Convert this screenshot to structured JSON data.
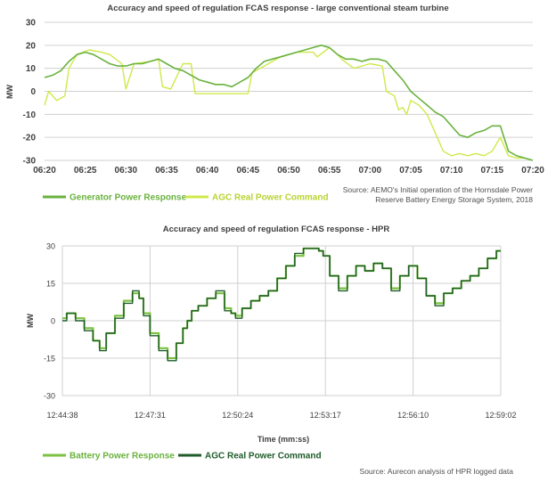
{
  "colors": {
    "gen_response": "#6ab23e",
    "agc_command_1": "#d0e84a",
    "battery_response": "#7cc242",
    "agc_command_2": "#1f5c2a",
    "grid": "#d0d0d0",
    "text": "#404040"
  },
  "chart_data": [
    {
      "type": "line",
      "title": "Accuracy and speed of regulation FCAS response - large conventional steam turbine",
      "ylabel": "MW",
      "xlabel": "",
      "ylim": [
        -30,
        30
      ],
      "yticks": [
        30,
        20,
        10,
        0,
        -10,
        -20,
        -30
      ],
      "xlim": [
        0,
        60
      ],
      "xticks": [
        {
          "t": 0,
          "label": "06:20"
        },
        {
          "t": 5,
          "label": "06:25"
        },
        {
          "t": 10,
          "label": "06:30"
        },
        {
          "t": 15,
          "label": "06:35"
        },
        {
          "t": 20,
          "label": "06:40"
        },
        {
          "t": 25,
          "label": "06:45"
        },
        {
          "t": 30,
          "label": "06:50"
        },
        {
          "t": 35,
          "label": "06:55"
        },
        {
          "t": 40,
          "label": "07:00"
        },
        {
          "t": 45,
          "label": "07:05"
        },
        {
          "t": 50,
          "label": "07:10"
        },
        {
          "t": 55,
          "label": "07:15"
        },
        {
          "t": 60,
          "label": "07:20"
        }
      ],
      "series": [
        {
          "name": "Generator Power Response",
          "x": [
            0,
            1,
            2,
            3,
            4,
            5,
            6,
            7,
            8,
            9,
            10,
            11,
            12,
            13,
            14,
            15,
            16,
            17,
            18,
            19,
            20,
            21,
            22,
            23,
            24,
            25,
            26,
            27,
            28,
            29,
            30,
            31,
            32,
            33,
            34,
            35,
            36,
            37,
            38,
            39,
            40,
            41,
            42,
            43,
            44,
            45,
            46,
            47,
            48,
            49,
            50,
            51,
            52,
            53,
            54,
            55,
            56,
            57,
            58,
            59,
            60
          ],
          "values": [
            6,
            7,
            9,
            13,
            16,
            17,
            16,
            14,
            12,
            11,
            11,
            12,
            12,
            13,
            14,
            12,
            10,
            9,
            7,
            5,
            4,
            3,
            3,
            2,
            4,
            6,
            10,
            13,
            14,
            15,
            16,
            17,
            18,
            19,
            20,
            19,
            16,
            14,
            14,
            13,
            14,
            14,
            13,
            9,
            5,
            0,
            -3,
            -6,
            -9,
            -11,
            -15,
            -19,
            -20,
            -18,
            -17,
            -15,
            -15,
            -26,
            -28,
            -29,
            -30
          ]
        },
        {
          "name": "AGC Real Power Command",
          "x": [
            0,
            0.5,
            1.5,
            2.5,
            3,
            4,
            5.5,
            7,
            8,
            9.5,
            10,
            11,
            13,
            14,
            14.5,
            15.5,
            17,
            18,
            18.5,
            20,
            22,
            24,
            25,
            25.5,
            27,
            29,
            31,
            33,
            33.5,
            35,
            36,
            36.5,
            38,
            40,
            41.5,
            42,
            43,
            43.5,
            44,
            44.5,
            45,
            46,
            47,
            48,
            49,
            50,
            51,
            52,
            53,
            54,
            55,
            56,
            57,
            58,
            59,
            60
          ],
          "values": [
            -6,
            0,
            -4,
            -2,
            10,
            16,
            18,
            17,
            16,
            12,
            1,
            12,
            13,
            14,
            2,
            1,
            12,
            12,
            -1,
            -1,
            -1,
            -1,
            -1,
            8,
            11,
            15,
            17,
            17,
            15,
            19,
            16,
            14,
            10,
            12,
            11,
            0,
            -2,
            -8,
            -7,
            -10,
            -4,
            -6,
            -10,
            -18,
            -26,
            -28,
            -27,
            -28,
            -27,
            -28,
            -26,
            -20,
            -28,
            -29,
            -29,
            -30
          ]
        }
      ],
      "legend": [
        "Generator Power Response",
        "AGC Real Power Command"
      ],
      "source": [
        "Source: AEMO's Initial operation of the Hornsdale Power",
        "Reserve Battery Energy Storage System, 2018"
      ]
    },
    {
      "type": "line",
      "title": "Accuracy and speed of regulation FCAS response - HPR",
      "ylabel": "MW",
      "xlabel": "Time (mm:ss)",
      "ylim": [
        -30,
        30
      ],
      "yticks": [
        30,
        15,
        0,
        -15,
        -30
      ],
      "xlim": [
        0,
        100
      ],
      "xticks": [
        {
          "t": 0,
          "label": "12:44:38"
        },
        {
          "t": 20,
          "label": "12:47:31"
        },
        {
          "t": 40,
          "label": "12:50:24"
        },
        {
          "t": 60,
          "label": "12:53:17"
        },
        {
          "t": 80,
          "label": "12:56:10"
        },
        {
          "t": 100,
          "label": "12:59:02"
        }
      ],
      "series": [
        {
          "name": "Battery Power Response",
          "x": [
            0,
            2,
            4,
            6,
            8,
            9,
            11,
            13,
            15,
            17,
            18,
            19,
            21,
            23,
            25,
            27,
            28,
            29,
            30,
            32,
            34,
            36,
            38,
            39,
            40,
            42,
            44,
            46,
            48,
            50,
            52,
            54,
            56,
            58,
            59,
            60,
            62,
            64,
            66,
            68,
            70,
            72,
            74,
            76,
            78,
            80,
            82,
            84,
            86,
            88,
            90,
            92,
            94,
            96,
            98,
            100
          ],
          "values": [
            1,
            3,
            1,
            -3,
            -8,
            -11,
            -5,
            2,
            8,
            11,
            9,
            3,
            -5,
            -11,
            -15,
            -9,
            -3,
            0,
            4,
            6,
            9,
            11,
            5,
            3,
            2,
            5,
            8,
            10,
            12,
            17,
            22,
            26,
            29,
            29,
            28,
            26,
            18,
            13,
            18,
            22,
            20,
            23,
            21,
            13,
            18,
            22,
            17,
            10,
            7,
            11,
            13,
            16,
            18,
            21,
            25,
            28
          ]
        },
        {
          "name": "AGC Real Power Command",
          "x": [
            0,
            2,
            4,
            6,
            8,
            9,
            11,
            13,
            15,
            17,
            18,
            19,
            21,
            23,
            25,
            27,
            28,
            29,
            30,
            32,
            34,
            36,
            38,
            39,
            40,
            42,
            44,
            46,
            48,
            50,
            52,
            54,
            56,
            58,
            59,
            60,
            62,
            64,
            66,
            68,
            70,
            72,
            74,
            76,
            78,
            80,
            82,
            84,
            86,
            88,
            90,
            92,
            94,
            96,
            98,
            100
          ],
          "values": [
            0,
            3,
            0,
            -4,
            -8,
            -12,
            -5,
            1,
            7,
            12,
            9,
            2,
            -6,
            -12,
            -16,
            -9,
            -3,
            0,
            4,
            6,
            9,
            12,
            4,
            3,
            1,
            5,
            8,
            10,
            12,
            17,
            22,
            27,
            29,
            29,
            28,
            26,
            18,
            12,
            18,
            22,
            20,
            23,
            21,
            12,
            18,
            22,
            17,
            10,
            6,
            11,
            13,
            16,
            18,
            21,
            25,
            28
          ]
        }
      ],
      "legend": [
        "Battery Power Response",
        "AGC Real Power Command"
      ],
      "source": [
        "Source: Aurecon analysis of HPR logged data"
      ]
    }
  ]
}
